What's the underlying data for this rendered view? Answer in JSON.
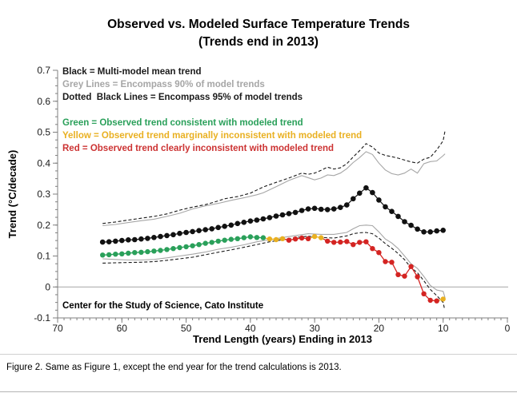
{
  "title": {
    "line1": "Observed vs. Modeled Surface Temperature Trends",
    "line2": "(Trends end in 2013)"
  },
  "legend": {
    "model": [
      {
        "label": "Black = Multi-model mean trend",
        "color": "#1a1a1a"
      },
      {
        "label": "Grey Lines = Encompass 90% of model trends",
        "color": "#a6a6a6"
      },
      {
        "label": "Dotted  Black Lines = Encompass 95% of model trends",
        "color": "#1a1a1a"
      }
    ],
    "observed": [
      {
        "label": "Green = Observed trend consistent with modeled trend",
        "color": "#2aa05a"
      },
      {
        "label": "Yellow = Observed trend marginally inconsistent with modeled trend",
        "color": "#e9b021"
      },
      {
        "label": "Red = Observed trend clearly inconsistent with modeled trend",
        "color": "#cc3333"
      }
    ]
  },
  "annotation": "Center for the Study of Science, Cato Institute",
  "caption": "Figure 2. Same as Figure 1, except the end year for the trend calculations is 2013.",
  "chart_data": {
    "type": "line",
    "title": "Observed vs. Modeled Surface Temperature Trends (Trends end in 2013)",
    "xlabel": "Trend Length (years) Ending in 2013",
    "ylabel": "Trend (°C/decade)",
    "xlim": [
      70,
      0
    ],
    "ylim": [
      -0.1,
      0.7
    ],
    "xticks": [
      70,
      60,
      50,
      40,
      30,
      20,
      10,
      0
    ],
    "yticks": [
      "0.7",
      "0.6",
      "0.5",
      "0.4",
      "0.3",
      "0.2",
      "0.1",
      "0",
      "-0.1"
    ],
    "x_minor_step": 1,
    "y_minor_step": 0.025,
    "grid": "zero-line-only",
    "legend_position": "inside-top-left",
    "axis_color": "#7f7f7f",
    "zero_line_color": "#a6a6a6",
    "observed_palette": {
      "g": "#2aa05a",
      "y": "#e9b021",
      "r": "#d42422"
    },
    "years": [
      63,
      62,
      61,
      60,
      59,
      58,
      57,
      56,
      55,
      54,
      53,
      52,
      51,
      50,
      49,
      48,
      47,
      46,
      45,
      44,
      43,
      42,
      41,
      40,
      39,
      38,
      37,
      36,
      35,
      34,
      33,
      32,
      31,
      30,
      29,
      28,
      27,
      26,
      25,
      24,
      23,
      22,
      21,
      20,
      19,
      18,
      17,
      16,
      15,
      14,
      13,
      12,
      11,
      10
    ],
    "series": [
      {
        "name": "multi-model-mean",
        "style": "marker-line",
        "color": "#111111",
        "values": [
          0.145,
          0.146,
          0.148,
          0.15,
          0.152,
          0.153,
          0.155,
          0.157,
          0.16,
          0.163,
          0.166,
          0.169,
          0.173,
          0.176,
          0.179,
          0.182,
          0.185,
          0.188,
          0.192,
          0.196,
          0.2,
          0.205,
          0.209,
          0.213,
          0.216,
          0.22,
          0.224,
          0.229,
          0.233,
          0.237,
          0.241,
          0.247,
          0.252,
          0.254,
          0.251,
          0.25,
          0.252,
          0.257,
          0.265,
          0.285,
          0.303,
          0.32,
          0.305,
          0.281,
          0.259,
          0.244,
          0.228,
          0.211,
          0.199,
          0.187,
          0.178,
          0.178,
          0.181,
          0.183
        ]
      },
      {
        "name": "observed-trend",
        "style": "marker-line",
        "values": [
          0.103,
          0.104,
          0.106,
          0.107,
          0.109,
          0.111,
          0.112,
          0.114,
          0.116,
          0.118,
          0.121,
          0.124,
          0.127,
          0.13,
          0.133,
          0.137,
          0.141,
          0.144,
          0.148,
          0.151,
          0.154,
          0.156,
          0.159,
          0.162,
          0.16,
          0.159,
          0.155,
          0.153,
          0.156,
          0.151,
          0.155,
          0.158,
          0.156,
          0.163,
          0.159,
          0.148,
          0.144,
          0.145,
          0.147,
          0.137,
          0.144,
          0.146,
          0.124,
          0.111,
          0.082,
          0.08,
          0.04,
          0.035,
          0.066,
          0.033,
          -0.022,
          -0.043,
          -0.045,
          -0.039
        ],
        "point_colors": [
          "g",
          "g",
          "g",
          "g",
          "g",
          "g",
          "g",
          "g",
          "g",
          "g",
          "g",
          "g",
          "g",
          "g",
          "g",
          "g",
          "g",
          "g",
          "g",
          "g",
          "g",
          "g",
          "g",
          "g",
          "g",
          "g",
          "y",
          "y",
          "y",
          "r",
          "r",
          "r",
          "r",
          "y",
          "y",
          "r",
          "r",
          "r",
          "r",
          "r",
          "r",
          "r",
          "r",
          "r",
          "r",
          "r",
          "r",
          "r",
          "r",
          "r",
          "r",
          "r",
          "r",
          "y"
        ]
      },
      {
        "name": "upper-95-bound",
        "style": "dashed",
        "color": "#1a1a1a",
        "points": [
          [
            63,
            0.205
          ],
          [
            61,
            0.21
          ],
          [
            59,
            0.216
          ],
          [
            57,
            0.222
          ],
          [
            55,
            0.228
          ],
          [
            53,
            0.236
          ],
          [
            51,
            0.248
          ],
          [
            49,
            0.258
          ],
          [
            47,
            0.266
          ],
          [
            45,
            0.278
          ],
          [
            44,
            0.285
          ],
          [
            42,
            0.292
          ],
          [
            40,
            0.303
          ],
          [
            38,
            0.323
          ],
          [
            36,
            0.338
          ],
          [
            34,
            0.352
          ],
          [
            32,
            0.368
          ],
          [
            31,
            0.364
          ],
          [
            30,
            0.368
          ],
          [
            29,
            0.377
          ],
          [
            28,
            0.387
          ],
          [
            27,
            0.381
          ],
          [
            26,
            0.385
          ],
          [
            25,
            0.398
          ],
          [
            24,
            0.42
          ],
          [
            23,
            0.44
          ],
          [
            22,
            0.463
          ],
          [
            21,
            0.452
          ],
          [
            20,
            0.433
          ],
          [
            19,
            0.425
          ],
          [
            18,
            0.421
          ],
          [
            17,
            0.416
          ],
          [
            16,
            0.41
          ],
          [
            15,
            0.404
          ],
          [
            14,
            0.4
          ],
          [
            13,
            0.413
          ],
          [
            12,
            0.419
          ],
          [
            11,
            0.443
          ],
          [
            10,
            0.472
          ],
          [
            9.7,
            0.505
          ]
        ]
      },
      {
        "name": "upper-90-bound",
        "style": "solid",
        "color": "#a6a6a6",
        "points": [
          [
            63,
            0.198
          ],
          [
            61,
            0.202
          ],
          [
            59,
            0.208
          ],
          [
            57,
            0.214
          ],
          [
            55,
            0.219
          ],
          [
            53,
            0.228
          ],
          [
            51,
            0.238
          ],
          [
            49,
            0.252
          ],
          [
            47,
            0.262
          ],
          [
            45,
            0.27
          ],
          [
            43,
            0.28
          ],
          [
            41,
            0.288
          ],
          [
            39,
            0.298
          ],
          [
            38,
            0.304
          ],
          [
            36,
            0.324
          ],
          [
            34,
            0.344
          ],
          [
            32,
            0.36
          ],
          [
            30,
            0.346
          ],
          [
            29,
            0.352
          ],
          [
            28,
            0.362
          ],
          [
            27,
            0.36
          ],
          [
            26,
            0.368
          ],
          [
            25,
            0.382
          ],
          [
            24,
            0.402
          ],
          [
            23,
            0.418
          ],
          [
            22,
            0.437
          ],
          [
            21,
            0.428
          ],
          [
            20,
            0.4
          ],
          [
            19,
            0.378
          ],
          [
            18,
            0.366
          ],
          [
            17,
            0.362
          ],
          [
            16,
            0.368
          ],
          [
            15,
            0.381
          ],
          [
            14,
            0.368
          ],
          [
            13,
            0.398
          ],
          [
            12,
            0.405
          ],
          [
            11,
            0.407
          ],
          [
            10,
            0.424
          ],
          [
            9.7,
            0.43
          ]
        ]
      },
      {
        "name": "lower-90-bound",
        "style": "solid",
        "color": "#a6a6a6",
        "points": [
          [
            63,
            0.091
          ],
          [
            61,
            0.089
          ],
          [
            59,
            0.087
          ],
          [
            57,
            0.087
          ],
          [
            55,
            0.089
          ],
          [
            53,
            0.094
          ],
          [
            51,
            0.1
          ],
          [
            49,
            0.106
          ],
          [
            47,
            0.113
          ],
          [
            45,
            0.122
          ],
          [
            43,
            0.128
          ],
          [
            41,
            0.136
          ],
          [
            39,
            0.146
          ],
          [
            37,
            0.153
          ],
          [
            35,
            0.16
          ],
          [
            33,
            0.166
          ],
          [
            31,
            0.172
          ],
          [
            29,
            0.17
          ],
          [
            27,
            0.17
          ],
          [
            25,
            0.176
          ],
          [
            24,
            0.188
          ],
          [
            23,
            0.198
          ],
          [
            22,
            0.2
          ],
          [
            21,
            0.198
          ],
          [
            20,
            0.178
          ],
          [
            19,
            0.155
          ],
          [
            18,
            0.142
          ],
          [
            17,
            0.124
          ],
          [
            16,
            0.1
          ],
          [
            15,
            0.075
          ],
          [
            14,
            0.06
          ],
          [
            13,
            0.034
          ],
          [
            12,
            0.005
          ],
          [
            11,
            -0.01
          ],
          [
            10,
            -0.014
          ],
          [
            9.7,
            -0.035
          ]
        ]
      },
      {
        "name": "lower-95-bound",
        "style": "dashed",
        "color": "#1a1a1a",
        "points": [
          [
            63,
            0.077
          ],
          [
            61,
            0.078
          ],
          [
            59,
            0.079
          ],
          [
            57,
            0.08
          ],
          [
            55,
            0.082
          ],
          [
            53,
            0.086
          ],
          [
            51,
            0.091
          ],
          [
            49,
            0.096
          ],
          [
            47,
            0.104
          ],
          [
            45,
            0.112
          ],
          [
            43,
            0.12
          ],
          [
            41,
            0.128
          ],
          [
            39,
            0.137
          ],
          [
            37,
            0.146
          ],
          [
            35,
            0.152
          ],
          [
            33,
            0.16
          ],
          [
            31,
            0.164
          ],
          [
            29,
            0.16
          ],
          [
            27,
            0.158
          ],
          [
            25,
            0.165
          ],
          [
            24,
            0.172
          ],
          [
            23,
            0.175
          ],
          [
            22,
            0.176
          ],
          [
            21,
            0.172
          ],
          [
            20,
            0.158
          ],
          [
            19,
            0.14
          ],
          [
            18,
            0.125
          ],
          [
            17,
            0.108
          ],
          [
            16,
            0.088
          ],
          [
            15,
            0.062
          ],
          [
            14,
            0.046
          ],
          [
            13,
            0.02
          ],
          [
            12,
            -0.008
          ],
          [
            11,
            -0.028
          ],
          [
            10,
            -0.05
          ],
          [
            9.8,
            -0.069
          ]
        ]
      }
    ]
  }
}
